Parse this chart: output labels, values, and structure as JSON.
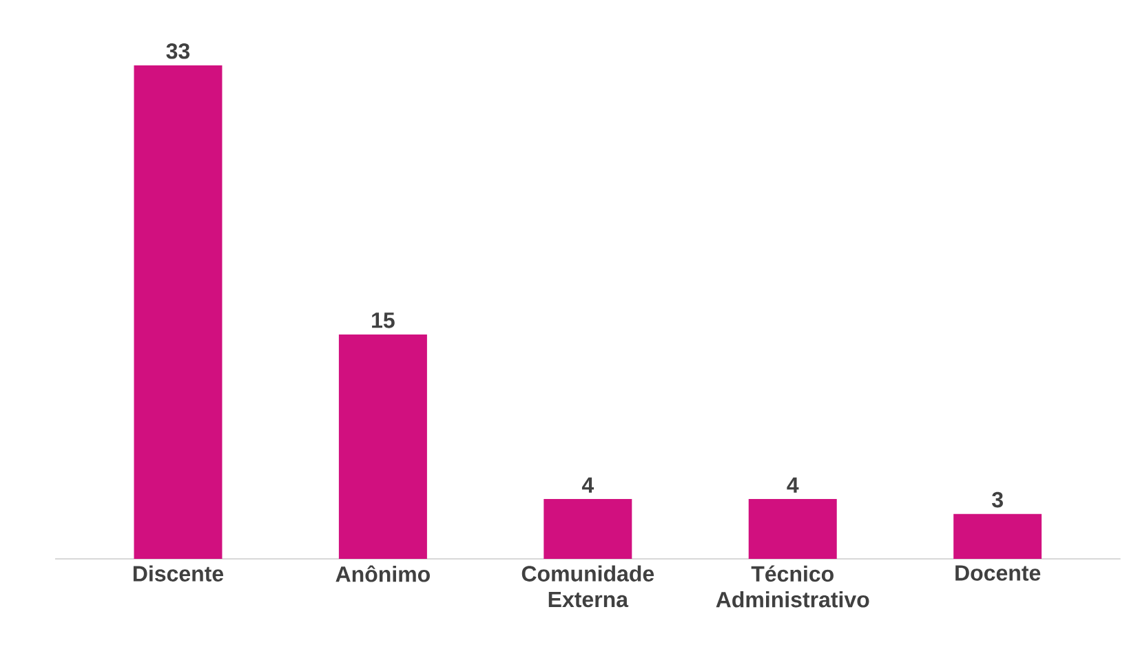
{
  "chart_data": {
    "type": "bar",
    "categories": [
      "Discente",
      "Anônimo",
      "Comunidade Externa",
      "Técnico Administrativo",
      "Docente"
    ],
    "values": [
      33,
      15,
      4,
      4,
      3
    ],
    "color": "#d1107f",
    "data_labels": true
  }
}
